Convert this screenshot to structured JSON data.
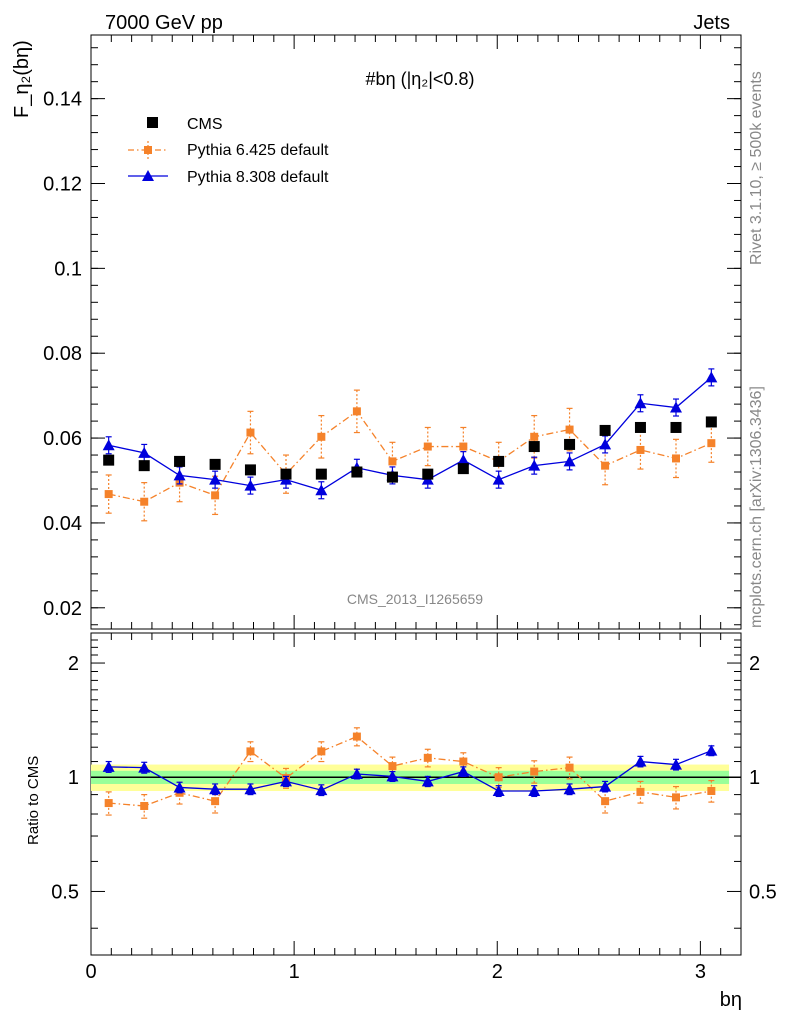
{
  "header": {
    "left": "7000 GeV pp",
    "right": "Jets"
  },
  "side_text": {
    "rivet": "Rivet 3.1.10, ≥ 500k events",
    "mcplots": "mcplots.cern.ch [arXiv:1306.3436]"
  },
  "colors": {
    "cms": "#000000",
    "py6": "#f5822a",
    "py8": "#0000dd",
    "band_green": "#99ff99",
    "band_yellow": "#ffff99"
  },
  "chart_data": [
    {
      "type": "scatter",
      "panel": "main",
      "title": "#bη (|η₂|<0.8)",
      "ylabel": "F_η₂(bη)",
      "xlabel": "bη",
      "watermark": "CMS_2013_I1265659",
      "xlim": [
        0,
        3.2
      ],
      "ylim": [
        0.015,
        0.155
      ],
      "yticks": [
        0.02,
        0.04,
        0.06,
        0.08,
        0.1,
        0.12,
        0.14
      ],
      "ytick_labels": [
        "0.02",
        "0.04",
        "0.06",
        "0.08",
        "0.1",
        "0.12",
        "0.14"
      ],
      "x": [
        0.087,
        0.262,
        0.436,
        0.611,
        0.785,
        0.96,
        1.134,
        1.309,
        1.484,
        1.658,
        1.833,
        2.007,
        2.182,
        2.356,
        2.531,
        2.705,
        2.88,
        3.054
      ],
      "legend": [
        "CMS",
        "Pythia 6.425 default",
        "Pythia 8.308 default"
      ],
      "series": [
        {
          "name": "CMS",
          "marker": "square",
          "values": [
            0.0548,
            0.0535,
            0.0545,
            0.0538,
            0.0525,
            0.0515,
            0.0515,
            0.052,
            0.0508,
            0.0515,
            0.0528,
            0.0545,
            0.058,
            0.0585,
            0.0618,
            0.0625,
            0.0625,
            0.0638
          ]
        },
        {
          "name": "Pythia 6.425 default",
          "marker": "square",
          "line": "dashdot",
          "values": [
            0.0468,
            0.045,
            0.0495,
            0.0465,
            0.0613,
            0.0515,
            0.0603,
            0.0663,
            0.0545,
            0.058,
            0.058,
            0.0545,
            0.0603,
            0.062,
            0.0535,
            0.0572,
            0.0552,
            0.0588
          ],
          "errors": [
            0.0045,
            0.0045,
            0.0045,
            0.0045,
            0.005,
            0.0045,
            0.005,
            0.005,
            0.0045,
            0.0045,
            0.0045,
            0.0045,
            0.005,
            0.005,
            0.0045,
            0.0045,
            0.0045,
            0.0045
          ]
        },
        {
          "name": "Pythia 8.308 default",
          "marker": "triangle",
          "line": "solid",
          "values": [
            0.0583,
            0.0565,
            0.0512,
            0.0502,
            0.0488,
            0.0502,
            0.0477,
            0.053,
            0.0512,
            0.0502,
            0.0548,
            0.0502,
            0.0535,
            0.0545,
            0.0585,
            0.0682,
            0.0672,
            0.0743
          ],
          "errors": [
            0.002,
            0.002,
            0.002,
            0.002,
            0.002,
            0.002,
            0.002,
            0.002,
            0.002,
            0.002,
            0.002,
            0.002,
            0.002,
            0.002,
            0.002,
            0.002,
            0.002,
            0.002
          ]
        }
      ]
    },
    {
      "type": "scatter",
      "panel": "ratio",
      "ylabel": "Ratio to CMS",
      "xlabel": "bη",
      "xlim": [
        0,
        3.2
      ],
      "ylim": [
        0.34,
        2.4
      ],
      "yticks": [
        0.5,
        1,
        2
      ],
      "ytick_labels": [
        "0.5",
        "1",
        "2"
      ],
      "xticks": [
        0,
        1,
        2,
        3
      ],
      "xtick_labels": [
        "0",
        "1",
        "2",
        "3"
      ],
      "band_green_halfwidth": 0.04,
      "band_yellow_halfwidth": 0.08,
      "series": [
        {
          "name": "Pythia 6.425 default",
          "values": [
            0.855,
            0.84,
            0.91,
            0.865,
            1.17,
            0.995,
            1.17,
            1.28,
            1.07,
            1.125,
            1.1,
            1.0,
            1.035,
            1.06,
            0.865,
            0.915,
            0.885,
            0.92
          ],
          "errors": [
            0.06,
            0.06,
            0.06,
            0.06,
            0.07,
            0.06,
            0.07,
            0.07,
            0.06,
            0.06,
            0.06,
            0.06,
            0.07,
            0.07,
            0.06,
            0.06,
            0.06,
            0.06
          ]
        },
        {
          "name": "Pythia 8.308 default",
          "values": [
            1.065,
            1.06,
            0.94,
            0.93,
            0.93,
            0.975,
            0.925,
            1.02,
            1.005,
            0.975,
            1.035,
            0.92,
            0.92,
            0.93,
            0.945,
            1.1,
            1.08,
            1.175
          ],
          "errors": [
            0.035,
            0.035,
            0.03,
            0.03,
            0.03,
            0.03,
            0.03,
            0.03,
            0.03,
            0.03,
            0.03,
            0.03,
            0.03,
            0.03,
            0.03,
            0.035,
            0.035,
            0.035
          ]
        }
      ]
    }
  ]
}
